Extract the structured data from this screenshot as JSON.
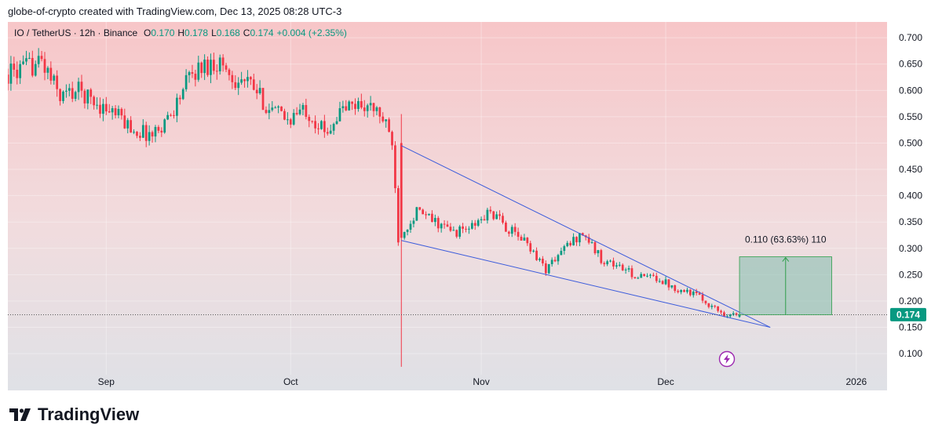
{
  "header": {
    "attribution": "globe-of-crypto created with TradingView.com, Dec 13, 2025 08:28 UTC-3"
  },
  "legend": {
    "symbol": "IO / TetherUS · 12h · Binance",
    "o_label": "O",
    "o_value": "0.170",
    "h_label": "H",
    "h_value": "0.178",
    "l_label": "L",
    "l_value": "0.168",
    "c_label": "C",
    "c_value": "0.174",
    "change": "+0.004 (+2.35%)"
  },
  "price_badge": "0.174",
  "measure_label": "0.110 (63.63%) 110",
  "logo_text": "TradingView",
  "colors": {
    "up": "#089981",
    "down": "#f23645",
    "trendline": "#3b5bdb",
    "badge": "#089981",
    "measure_fill": "#8bbfb0",
    "measure_stroke": "#2e9e4a"
  },
  "chart_data": {
    "type": "candlestick",
    "interval": "12h",
    "exchange": "Binance",
    "symbol": "IO / TetherUS",
    "y_ticks": [
      "0.700",
      "0.650",
      "0.600",
      "0.550",
      "0.500",
      "0.450",
      "0.400",
      "0.350",
      "0.300",
      "0.250",
      "0.200",
      "0.150",
      "0.100"
    ],
    "x_ticks": [
      {
        "label": "Sep",
        "date": "2025-09-01"
      },
      {
        "label": "Oct",
        "date": "2025-10-01"
      },
      {
        "label": "Nov",
        "date": "2025-11-01"
      },
      {
        "label": "Dec",
        "date": "2025-12-01"
      },
      {
        "label": "2026",
        "date": "2026-01-01"
      }
    ],
    "ylim": [
      0.06,
      0.73
    ],
    "xlim": [
      "2025-08-16",
      "2026-01-06"
    ],
    "keypoints": [
      [
        "2025-08-16",
        0.63
      ],
      [
        "2025-08-19",
        0.64
      ],
      [
        "2025-08-22",
        0.655
      ],
      [
        "2025-08-25",
        0.59
      ],
      [
        "2025-08-28",
        0.6
      ],
      [
        "2025-08-31",
        0.575
      ],
      [
        "2025-09-03",
        0.555
      ],
      [
        "2025-09-06",
        0.525
      ],
      [
        "2025-09-09",
        0.515
      ],
      [
        "2025-09-12",
        0.555
      ],
      [
        "2025-09-15",
        0.625
      ],
      [
        "2025-09-17",
        0.645
      ],
      [
        "2025-09-20",
        0.655
      ],
      [
        "2025-09-22",
        0.625
      ],
      [
        "2025-09-25",
        0.61
      ],
      [
        "2025-09-28",
        0.565
      ],
      [
        "2025-10-01",
        0.545
      ],
      [
        "2025-10-04",
        0.565
      ],
      [
        "2025-10-07",
        0.52
      ],
      [
        "2025-10-10",
        0.565
      ],
      [
        "2025-10-13",
        0.575
      ],
      [
        "2025-10-16",
        0.555
      ],
      [
        "2025-10-18",
        0.505
      ],
      [
        "2025-10-19",
        0.32
      ],
      [
        "2025-10-22",
        0.37
      ],
      [
        "2025-10-25",
        0.35
      ],
      [
        "2025-10-28",
        0.33
      ],
      [
        "2025-10-31",
        0.34
      ],
      [
        "2025-11-03",
        0.37
      ],
      [
        "2025-11-06",
        0.335
      ],
      [
        "2025-11-09",
        0.31
      ],
      [
        "2025-11-12",
        0.26
      ],
      [
        "2025-11-15",
        0.3
      ],
      [
        "2025-11-18",
        0.33
      ],
      [
        "2025-11-21",
        0.28
      ],
      [
        "2025-11-24",
        0.265
      ],
      [
        "2025-11-27",
        0.245
      ],
      [
        "2025-11-30",
        0.245
      ],
      [
        "2025-12-03",
        0.225
      ],
      [
        "2025-12-06",
        0.215
      ],
      [
        "2025-12-09",
        0.19
      ],
      [
        "2025-12-11",
        0.175
      ],
      [
        "2025-12-13",
        0.174
      ]
    ],
    "crash_candle": {
      "date": "2025-10-19",
      "open": 0.5,
      "high": 0.555,
      "low": 0.075,
      "close": 0.32
    },
    "last_candle": {
      "date": "2025-12-13",
      "open": 0.17,
      "high": 0.178,
      "low": 0.168,
      "close": 0.174
    },
    "trendlines": [
      {
        "from": [
          "2025-10-19",
          0.495
        ],
        "to": [
          "2025-12-18",
          0.15
        ]
      },
      {
        "from": [
          "2025-10-19",
          0.315
        ],
        "to": [
          "2025-12-18",
          0.15
        ]
      }
    ],
    "measure": {
      "from_date": "2025-12-13",
      "to_date": "2025-12-28",
      "low": 0.174,
      "high": 0.284,
      "delta": 0.11,
      "percent": 63.63
    },
    "current_price": 0.174
  }
}
